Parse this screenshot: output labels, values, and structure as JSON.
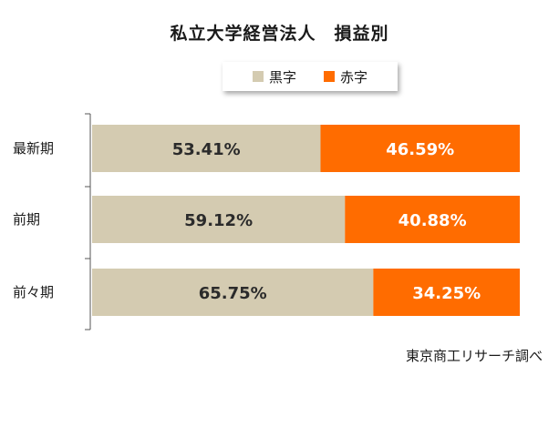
{
  "chart_data": {
    "type": "bar",
    "orientation": "horizontal",
    "stacked": true,
    "title": "私立大学経営法人　損益別",
    "categories": [
      "最新期",
      "前期",
      "前々期"
    ],
    "series": [
      {
        "name": "黒字",
        "color": "#d4cbb1",
        "values": [
          53.41,
          59.12,
          65.75
        ],
        "labels": [
          "53.41%",
          "59.12%",
          "65.75%"
        ]
      },
      {
        "name": "赤字",
        "color": "#ff6c00",
        "values": [
          46.59,
          40.88,
          34.25
        ],
        "labels": [
          "46.59%",
          "40.88%",
          "34.25%"
        ]
      }
    ],
    "xlim": [
      0,
      100
    ],
    "grid": false,
    "legend_position": "top-center"
  },
  "source": "東京商工リサーチ調べ"
}
